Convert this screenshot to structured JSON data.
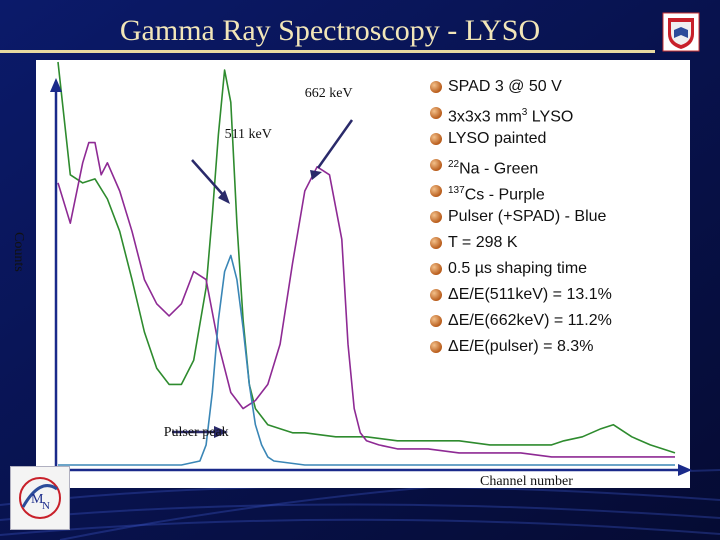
{
  "slide": {
    "title": "Gamma Ray Spectroscopy - LYSO",
    "colors": {
      "background": "#0a1550",
      "title": "#f2e6b8",
      "rule": "#e7d9a0"
    },
    "icons": {
      "crest": "university-crest-icon",
      "logo": "lab-logo-icon"
    }
  },
  "legend": {
    "items": [
      {
        "text": "SPAD 3 @ 50 V"
      },
      {
        "pre": "3x3x3 mm",
        "sup": "3",
        "post": " LYSO"
      },
      {
        "text": "LYSO painted"
      },
      {
        "sup": "22",
        "post": "Na - Green"
      },
      {
        "sup": "137",
        "post": "Cs - Purple"
      },
      {
        "text": "Pulser (+SPAD) - Blue"
      },
      {
        "text": "T = 298 K"
      },
      {
        "text": "0.5 µs shaping time"
      },
      {
        "text": "ΔE/E(511keV) = 13.1%"
      },
      {
        "text": "ΔE/E(662keV) = 11.2%"
      },
      {
        "text": "ΔE/E(pulser) = 8.3%"
      }
    ]
  },
  "chart_data": {
    "type": "line",
    "title": "",
    "xlabel": "Channel number",
    "ylabel": "Counts",
    "xlim": [
      0,
      100
    ],
    "ylim": [
      0,
      100
    ],
    "grid": false,
    "annotations": [
      {
        "text": "662 keV",
        "x": 40,
        "y": 92
      },
      {
        "text": "511 keV",
        "x": 27,
        "y": 82
      },
      {
        "text": "Pulser peak",
        "x": 28,
        "y": 8
      }
    ],
    "series": [
      {
        "color": "#2e8b2e",
        "x": [
          0,
          2,
          4,
          6,
          8,
          10,
          12,
          14,
          16,
          18,
          20,
          22,
          24,
          25,
          26,
          27,
          28,
          29,
          30,
          31,
          32,
          34,
          36,
          38,
          40,
          45,
          50,
          55,
          60,
          65,
          70,
          75,
          80,
          82,
          85,
          88,
          90,
          93,
          96,
          98,
          100
        ],
        "y": [
          100,
          72,
          70,
          71,
          66,
          58,
          46,
          33,
          24,
          20,
          20,
          26,
          44,
          62,
          82,
          98,
          90,
          60,
          36,
          20,
          14,
          10,
          9,
          8,
          8,
          7,
          7,
          6,
          6,
          6,
          5,
          5,
          5,
          6,
          7,
          9,
          10,
          7,
          5,
          4,
          3
        ]
      },
      {
        "color": "#8e2a94",
        "x": [
          0,
          2,
          4,
          5,
          6,
          7,
          8,
          10,
          12,
          14,
          16,
          18,
          20,
          22,
          24,
          26,
          28,
          30,
          32,
          34,
          36,
          38,
          40,
          42,
          44,
          46,
          47,
          48,
          49,
          50,
          52,
          55,
          60,
          65,
          70,
          75,
          80,
          85,
          90,
          95,
          100
        ],
        "y": [
          70,
          60,
          75,
          80,
          80,
          72,
          75,
          68,
          58,
          46,
          40,
          37,
          40,
          48,
          46,
          30,
          18,
          14,
          16,
          20,
          30,
          50,
          68,
          74,
          72,
          56,
          30,
          14,
          8,
          6,
          5,
          4,
          4,
          3,
          3,
          3,
          2,
          2,
          2,
          2,
          2
        ]
      },
      {
        "color": "#3a86b6",
        "x": [
          0,
          10,
          20,
          23,
          24,
          25,
          26,
          27,
          28,
          29,
          30,
          31,
          32,
          33,
          34,
          35,
          40,
          50,
          60,
          70,
          80,
          90,
          100
        ],
        "y": [
          0,
          0,
          0,
          1,
          5,
          18,
          36,
          48,
          52,
          46,
          34,
          20,
          10,
          5,
          2,
          1,
          0,
          0,
          0,
          0,
          0,
          0,
          0
        ]
      }
    ]
  }
}
